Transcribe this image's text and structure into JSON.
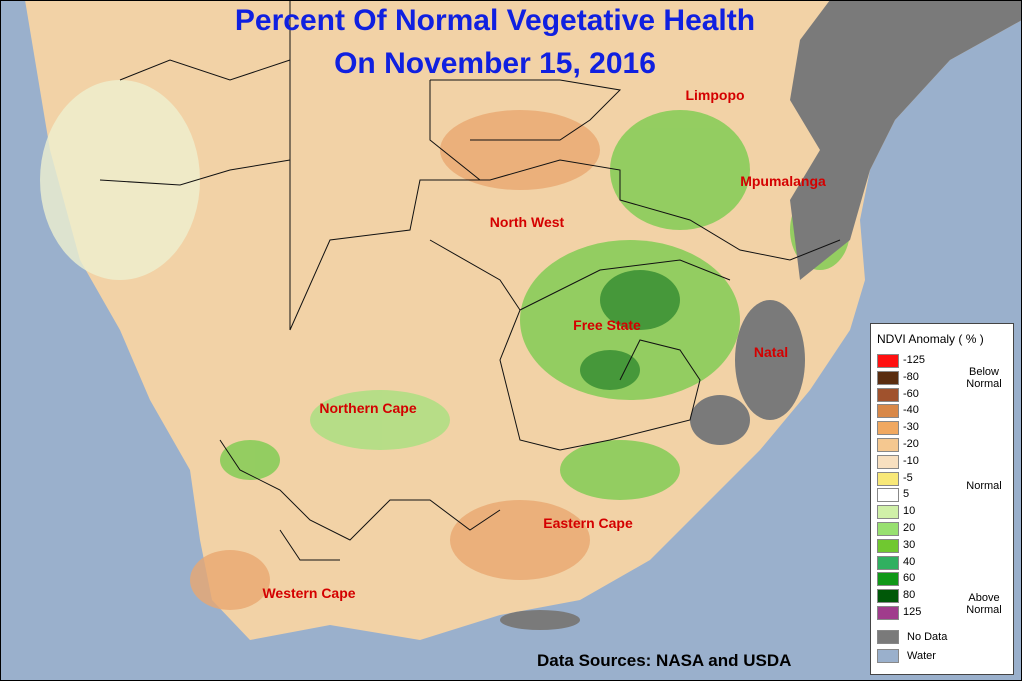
{
  "title": [
    "Percent Of Normal Vegetative Health",
    "On November 15, 2016"
  ],
  "regions": [
    "Limpopo",
    "Mpumalanga",
    "North West",
    "Free State",
    "Natal",
    "Northern Cape",
    "Eastern Cape",
    "Western Cape"
  ],
  "legend": {
    "title": "NDVI Anomaly ( % )",
    "entries": [
      {
        "label": "-125",
        "color": "#ff1010"
      },
      {
        "label": "-80",
        "color": "#5a2d10"
      },
      {
        "label": "-60",
        "color": "#a0522d"
      },
      {
        "label": "-40",
        "color": "#d88848"
      },
      {
        "label": "-30",
        "color": "#f0a860"
      },
      {
        "label": "-20",
        "color": "#f5c890"
      },
      {
        "label": "-10",
        "color": "#f8e0c0"
      },
      {
        "label": "-5",
        "color": "#f8e878"
      },
      {
        "label": "5",
        "color": "#ffffff"
      },
      {
        "label": "10",
        "color": "#d0f0a8"
      },
      {
        "label": "20",
        "color": "#98e070"
      },
      {
        "label": "30",
        "color": "#70c830"
      },
      {
        "label": "40",
        "color": "#30b060"
      },
      {
        "label": "60",
        "color": "#109818"
      },
      {
        "label": "80",
        "color": "#005808"
      },
      {
        "label": "125",
        "color": "#a03c8c"
      }
    ],
    "notes": [
      "Below Normal",
      "Normal",
      "Above Normal"
    ],
    "extra": [
      {
        "label": "No Data",
        "color": "#7a7a7a"
      },
      {
        "label": "Water",
        "color": "#9ab0cc"
      }
    ]
  },
  "source": "Data Sources: NASA and USDA"
}
